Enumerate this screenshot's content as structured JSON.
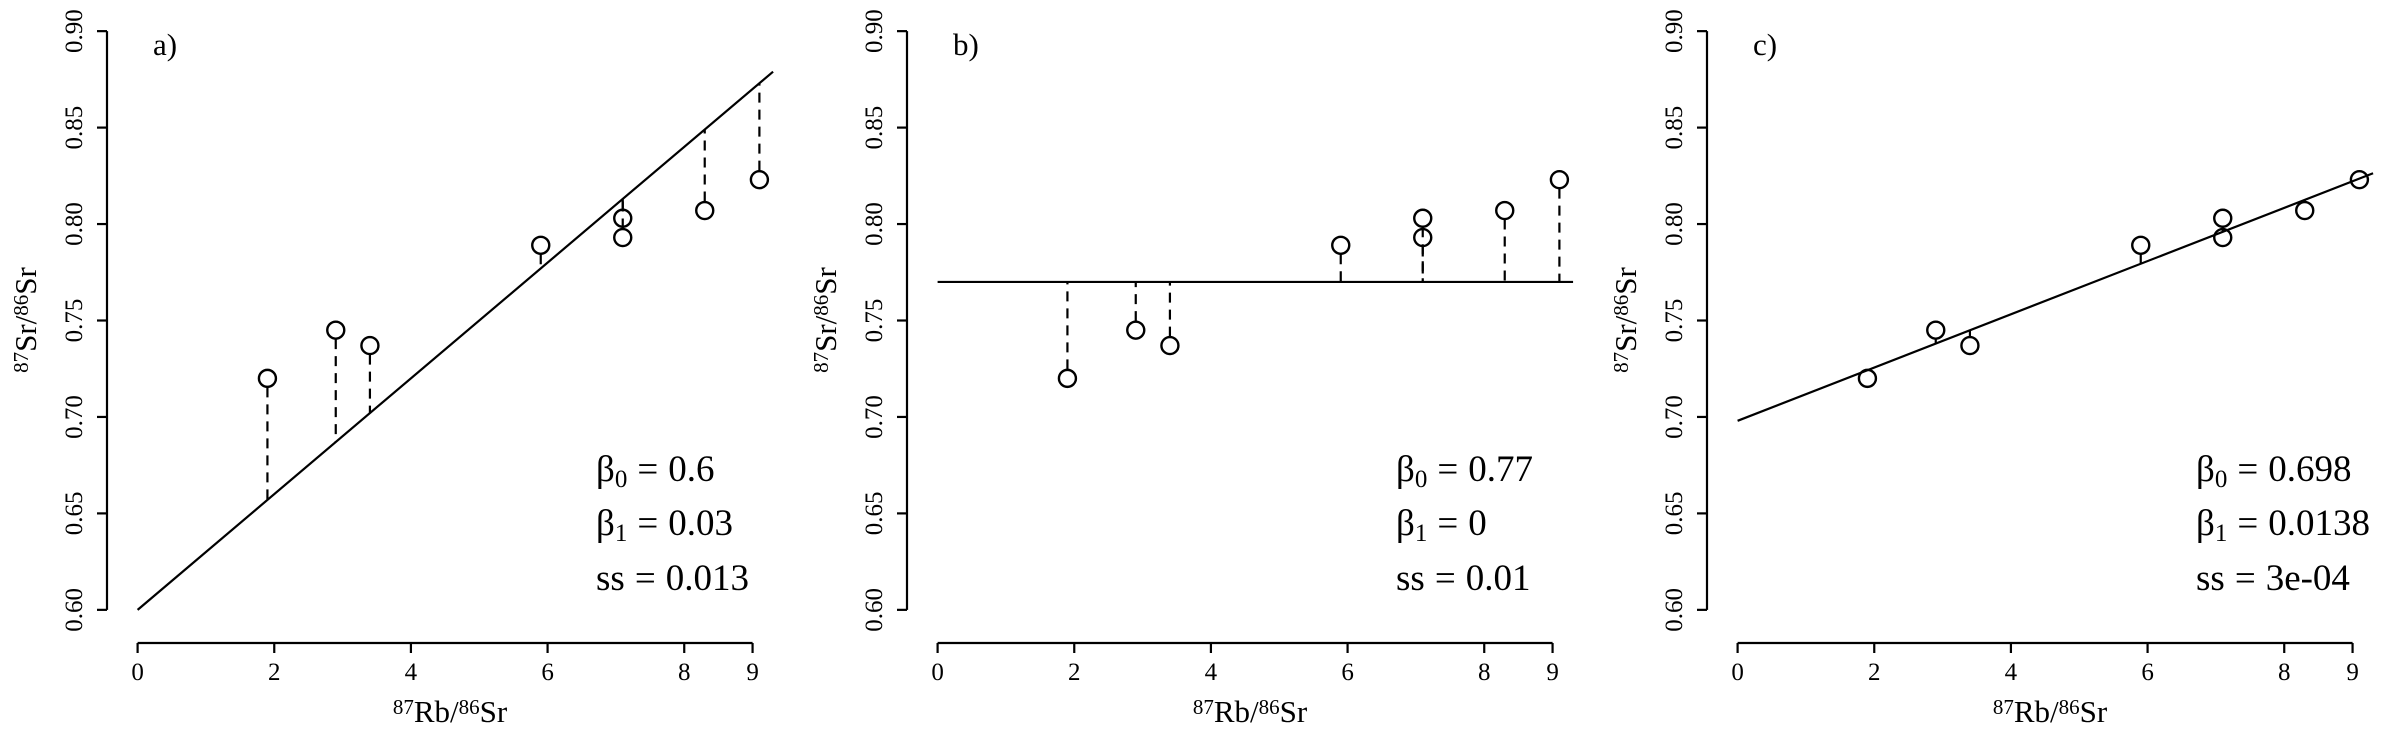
{
  "chart_data": [
    {
      "type": "scatter",
      "panel_label": "a)",
      "color": "#000000",
      "x": [
        1.9,
        2.9,
        3.4,
        5.9,
        7.1,
        7.1,
        8.3,
        9.1
      ],
      "y": [
        0.72,
        0.745,
        0.737,
        0.789,
        0.803,
        0.793,
        0.807,
        0.823
      ],
      "intercept": 0.6,
      "slope": 0.03,
      "ss": 0.013,
      "intercept_symbol": "β",
      "intercept_sub": "0",
      "slope_symbol": "β",
      "slope_sub": "1",
      "ss_name": "ss",
      "eq": "=",
      "xlabel": [
        "87",
        "Rb/",
        "86",
        "Sr"
      ],
      "ylabel": [
        "87",
        "Sr/",
        "86",
        "Sr"
      ],
      "xlim": [
        -0.36,
        9.46
      ],
      "ylim": [
        0.588,
        0.912
      ],
      "xticks": [
        0,
        2,
        4,
        6,
        8,
        9
      ],
      "yticks": [
        {
          "value": 0.6,
          "label": "0.60"
        },
        {
          "value": 0.65,
          "label": "0.65"
        },
        {
          "value": 0.7,
          "label": "0.70"
        },
        {
          "value": 0.75,
          "label": "0.75"
        },
        {
          "value": 0.8,
          "label": "0.80"
        },
        {
          "value": 0.85,
          "label": "0.85"
        },
        {
          "value": 0.9,
          "label": "0.90"
        }
      ]
    },
    {
      "type": "scatter",
      "panel_label": "b)",
      "color": "#000000",
      "x": [
        1.9,
        2.9,
        3.4,
        5.9,
        7.1,
        7.1,
        8.3,
        9.1
      ],
      "y": [
        0.72,
        0.745,
        0.737,
        0.789,
        0.803,
        0.793,
        0.807,
        0.823
      ],
      "intercept": 0.77,
      "slope": 0,
      "ss": 0.01,
      "intercept_symbol": "β",
      "intercept_sub": "0",
      "slope_symbol": "β",
      "slope_sub": "1",
      "ss_name": "ss",
      "eq": "=",
      "xlabel": [
        "87",
        "Rb/",
        "86",
        "Sr"
      ],
      "ylabel": [
        "87",
        "Sr/",
        "86",
        "Sr"
      ],
      "xlim": [
        -0.36,
        9.46
      ],
      "ylim": [
        0.588,
        0.912
      ],
      "xticks": [
        0,
        2,
        4,
        6,
        8,
        9
      ],
      "yticks": [
        {
          "value": 0.6,
          "label": "0.60"
        },
        {
          "value": 0.65,
          "label": "0.65"
        },
        {
          "value": 0.7,
          "label": "0.70"
        },
        {
          "value": 0.75,
          "label": "0.75"
        },
        {
          "value": 0.8,
          "label": "0.80"
        },
        {
          "value": 0.85,
          "label": "0.85"
        },
        {
          "value": 0.9,
          "label": "0.90"
        }
      ]
    },
    {
      "type": "scatter",
      "panel_label": "c)",
      "color": "#000000",
      "x": [
        1.9,
        2.9,
        3.4,
        5.9,
        7.1,
        7.1,
        8.3,
        9.1
      ],
      "y": [
        0.72,
        0.745,
        0.737,
        0.789,
        0.803,
        0.793,
        0.807,
        0.823
      ],
      "intercept": 0.698,
      "slope": 0.0138,
      "ss": 0.0003,
      "ss_label": "3e-04",
      "intercept_symbol": "β",
      "intercept_sub": "0",
      "slope_symbol": "β",
      "slope_sub": "1",
      "ss_name": "ss",
      "eq": "=",
      "xlabel": [
        "87",
        "Rb/",
        "86",
        "Sr"
      ],
      "ylabel": [
        "87",
        "Sr/",
        "86",
        "Sr"
      ],
      "xlim": [
        -0.36,
        9.46
      ],
      "ylim": [
        0.588,
        0.912
      ],
      "xticks": [
        0,
        2,
        4,
        6,
        8,
        9
      ],
      "yticks": [
        {
          "value": 0.6,
          "label": "0.60"
        },
        {
          "value": 0.65,
          "label": "0.65"
        },
        {
          "value": 0.7,
          "label": "0.70"
        },
        {
          "value": 0.75,
          "label": "0.75"
        },
        {
          "value": 0.8,
          "label": "0.80"
        },
        {
          "value": 0.85,
          "label": "0.85"
        },
        {
          "value": 0.9,
          "label": "0.90"
        }
      ]
    }
  ]
}
